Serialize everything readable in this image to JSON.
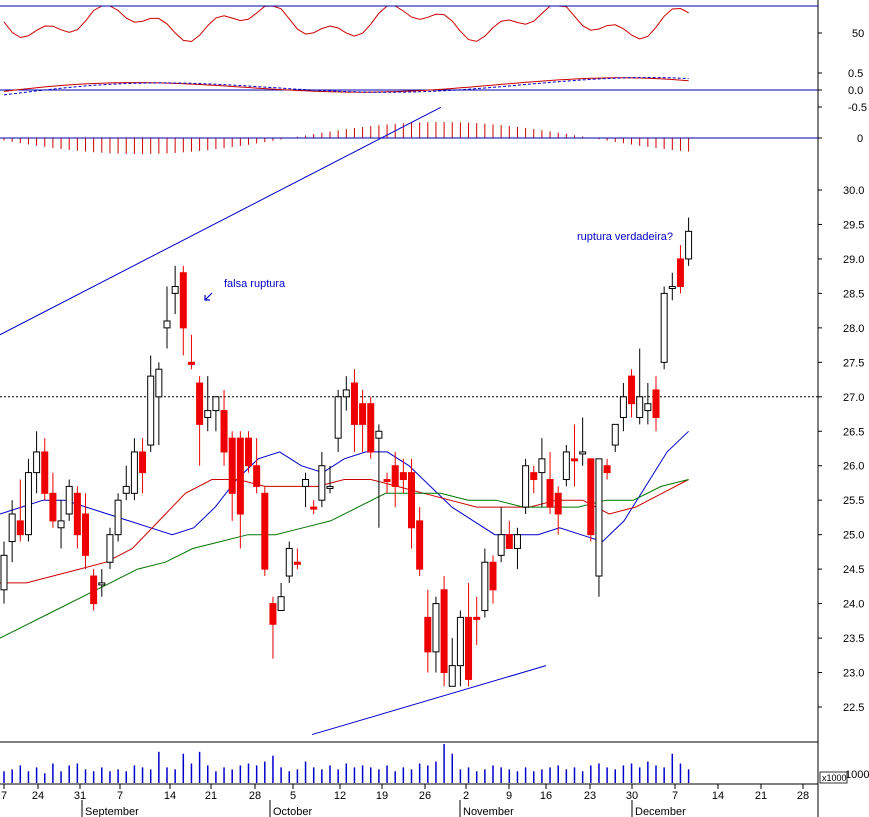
{
  "chart_data": {
    "type": "candlestick",
    "price_axis": {
      "ylim": [
        22.1,
        30.3
      ],
      "ticks": [
        22.5,
        23.0,
        23.5,
        24.0,
        24.5,
        25.0,
        25.5,
        26.0,
        26.5,
        27.0,
        27.5,
        28.0,
        28.5,
        29.0,
        29.5,
        30.0
      ]
    },
    "reference_level": 27.0,
    "x_day_labels": [
      "7",
      "24",
      "31",
      "7",
      "14",
      "21",
      "28",
      "5",
      "12",
      "19",
      "26",
      "2",
      "9",
      "16",
      "23",
      "30",
      "7",
      "14",
      "21",
      "28"
    ],
    "x_month_labels": [
      "September",
      "October",
      "November",
      "December"
    ],
    "annotations": [
      {
        "text": "falsa ruptura"
      },
      {
        "text": "ruptura verdadeira?"
      }
    ],
    "candles": [
      {
        "o": 24.2,
        "h": 24.9,
        "l": 24.0,
        "c": 24.7,
        "dir": "up"
      },
      {
        "o": 24.9,
        "h": 25.5,
        "l": 24.6,
        "c": 25.3,
        "dir": "up"
      },
      {
        "o": 25.2,
        "h": 25.8,
        "l": 24.9,
        "c": 25.0,
        "dir": "down"
      },
      {
        "o": 25.0,
        "h": 26.1,
        "l": 24.9,
        "c": 25.9,
        "dir": "up"
      },
      {
        "o": 25.9,
        "h": 26.5,
        "l": 25.6,
        "c": 26.2,
        "dir": "up"
      },
      {
        "o": 26.2,
        "h": 26.4,
        "l": 25.5,
        "c": 25.6,
        "dir": "down"
      },
      {
        "o": 25.6,
        "h": 25.9,
        "l": 25.1,
        "c": 25.2,
        "dir": "down"
      },
      {
        "o": 25.1,
        "h": 25.5,
        "l": 24.8,
        "c": 25.2,
        "dir": "up"
      },
      {
        "o": 25.3,
        "h": 25.8,
        "l": 25.2,
        "c": 25.7,
        "dir": "up"
      },
      {
        "o": 25.6,
        "h": 25.7,
        "l": 24.8,
        "c": 25.0,
        "dir": "down"
      },
      {
        "o": 25.3,
        "h": 25.6,
        "l": 24.5,
        "c": 24.7,
        "dir": "down"
      },
      {
        "o": 24.4,
        "h": 24.5,
        "l": 23.9,
        "c": 24.0,
        "dir": "down"
      },
      {
        "o": 24.3,
        "h": 24.5,
        "l": 24.1,
        "c": 24.3,
        "dir": "up"
      },
      {
        "o": 24.6,
        "h": 25.1,
        "l": 24.5,
        "c": 25.0,
        "dir": "up"
      },
      {
        "o": 25.0,
        "h": 25.6,
        "l": 24.9,
        "c": 25.5,
        "dir": "up"
      },
      {
        "o": 25.6,
        "h": 26.0,
        "l": 25.5,
        "c": 25.7,
        "dir": "up"
      },
      {
        "o": 25.6,
        "h": 26.4,
        "l": 25.5,
        "c": 26.2,
        "dir": "up"
      },
      {
        "o": 26.2,
        "h": 26.4,
        "l": 25.6,
        "c": 25.9,
        "dir": "down"
      },
      {
        "o": 26.3,
        "h": 27.6,
        "l": 26.2,
        "c": 27.3,
        "dir": "up"
      },
      {
        "o": 27.0,
        "h": 27.5,
        "l": 26.3,
        "c": 27.4,
        "dir": "up"
      },
      {
        "o": 28.0,
        "h": 28.6,
        "l": 27.7,
        "c": 28.1,
        "dir": "up"
      },
      {
        "o": 28.5,
        "h": 28.9,
        "l": 28.2,
        "c": 28.6,
        "dir": "up"
      },
      {
        "o": 28.8,
        "h": 28.9,
        "l": 27.6,
        "c": 28.0,
        "dir": "down"
      },
      {
        "o": 27.5,
        "h": 27.9,
        "l": 27.4,
        "c": 27.5,
        "dir": "down"
      },
      {
        "o": 27.2,
        "h": 27.3,
        "l": 26.0,
        "c": 26.6,
        "dir": "down"
      },
      {
        "o": 26.7,
        "h": 27.3,
        "l": 26.5,
        "c": 26.8,
        "dir": "up"
      },
      {
        "o": 26.8,
        "h": 27.0,
        "l": 26.5,
        "c": 27.0,
        "dir": "up"
      },
      {
        "o": 26.8,
        "h": 27.1,
        "l": 26.0,
        "c": 26.2,
        "dir": "down"
      },
      {
        "o": 26.4,
        "h": 26.5,
        "l": 25.2,
        "c": 25.6,
        "dir": "down"
      },
      {
        "o": 26.4,
        "h": 26.5,
        "l": 24.8,
        "c": 25.3,
        "dir": "down"
      },
      {
        "o": 26.4,
        "h": 26.5,
        "l": 25.9,
        "c": 26.0,
        "dir": "down"
      },
      {
        "o": 26.0,
        "h": 26.4,
        "l": 25.6,
        "c": 25.7,
        "dir": "down"
      },
      {
        "o": 25.6,
        "h": 25.7,
        "l": 24.4,
        "c": 24.5,
        "dir": "down"
      },
      {
        "o": 24.0,
        "h": 24.1,
        "l": 23.2,
        "c": 23.7,
        "dir": "down"
      },
      {
        "o": 23.9,
        "h": 24.3,
        "l": 23.9,
        "c": 24.1,
        "dir": "up"
      },
      {
        "o": 24.4,
        "h": 24.9,
        "l": 24.3,
        "c": 24.8,
        "dir": "up"
      },
      {
        "o": 24.6,
        "h": 24.8,
        "l": 24.5,
        "c": 24.6,
        "dir": "down"
      },
      {
        "o": 25.7,
        "h": 25.9,
        "l": 25.4,
        "c": 25.8,
        "dir": "up"
      },
      {
        "o": 25.4,
        "h": 25.5,
        "l": 25.3,
        "c": 25.4,
        "dir": "down"
      },
      {
        "o": 25.5,
        "h": 26.2,
        "l": 25.4,
        "c": 26.0,
        "dir": "up"
      },
      {
        "o": 25.7,
        "h": 26.0,
        "l": 25.6,
        "c": 25.7,
        "dir": "up"
      },
      {
        "o": 26.4,
        "h": 27.1,
        "l": 26.2,
        "c": 27.0,
        "dir": "up"
      },
      {
        "o": 27.0,
        "h": 27.3,
        "l": 26.8,
        "c": 27.1,
        "dir": "up"
      },
      {
        "o": 27.2,
        "h": 27.4,
        "l": 26.2,
        "c": 26.6,
        "dir": "down"
      },
      {
        "o": 26.9,
        "h": 27.1,
        "l": 26.2,
        "c": 26.6,
        "dir": "down"
      },
      {
        "o": 26.9,
        "h": 27.0,
        "l": 26.1,
        "c": 26.2,
        "dir": "down"
      },
      {
        "o": 26.4,
        "h": 26.6,
        "l": 25.1,
        "c": 26.5,
        "dir": "up"
      },
      {
        "o": 25.8,
        "h": 25.9,
        "l": 25.6,
        "c": 25.8,
        "dir": "down"
      },
      {
        "o": 26.0,
        "h": 26.2,
        "l": 25.4,
        "c": 25.7,
        "dir": "down"
      },
      {
        "o": 25.9,
        "h": 26.1,
        "l": 25.6,
        "c": 25.8,
        "dir": "down"
      },
      {
        "o": 25.9,
        "h": 26.1,
        "l": 24.8,
        "c": 25.1,
        "dir": "down"
      },
      {
        "o": 25.2,
        "h": 25.4,
        "l": 24.4,
        "c": 24.5,
        "dir": "down"
      },
      {
        "o": 23.8,
        "h": 24.2,
        "l": 23.0,
        "c": 23.3,
        "dir": "down"
      },
      {
        "o": 23.3,
        "h": 24.1,
        "l": 23.0,
        "c": 24.0,
        "dir": "up"
      },
      {
        "o": 24.2,
        "h": 24.4,
        "l": 22.8,
        "c": 23.0,
        "dir": "down"
      },
      {
        "o": 22.8,
        "h": 23.5,
        "l": 22.8,
        "c": 23.1,
        "dir": "up"
      },
      {
        "o": 23.1,
        "h": 23.9,
        "l": 22.8,
        "c": 23.8,
        "dir": "up"
      },
      {
        "o": 23.8,
        "h": 24.3,
        "l": 22.8,
        "c": 22.9,
        "dir": "down"
      },
      {
        "o": 23.8,
        "h": 24.1,
        "l": 23.4,
        "c": 23.8,
        "dir": "down"
      },
      {
        "o": 23.9,
        "h": 24.8,
        "l": 23.8,
        "c": 24.6,
        "dir": "up"
      },
      {
        "o": 24.6,
        "h": 24.7,
        "l": 24.0,
        "c": 24.2,
        "dir": "down"
      },
      {
        "o": 24.7,
        "h": 25.4,
        "l": 24.6,
        "c": 25.0,
        "dir": "up"
      },
      {
        "o": 25.0,
        "h": 25.2,
        "l": 24.8,
        "c": 24.8,
        "dir": "down"
      },
      {
        "o": 24.8,
        "h": 25.1,
        "l": 24.5,
        "c": 25.0,
        "dir": "up"
      },
      {
        "o": 25.4,
        "h": 26.1,
        "l": 25.3,
        "c": 26.0,
        "dir": "up"
      },
      {
        "o": 25.9,
        "h": 26.0,
        "l": 25.6,
        "c": 25.8,
        "dir": "down"
      },
      {
        "o": 25.9,
        "h": 26.4,
        "l": 25.4,
        "c": 26.1,
        "dir": "up"
      },
      {
        "o": 25.8,
        "h": 26.2,
        "l": 25.3,
        "c": 25.4,
        "dir": "down"
      },
      {
        "o": 25.6,
        "h": 25.7,
        "l": 25.0,
        "c": 25.3,
        "dir": "down"
      },
      {
        "o": 25.8,
        "h": 26.3,
        "l": 25.7,
        "c": 26.2,
        "dir": "up"
      },
      {
        "o": 26.1,
        "h": 26.6,
        "l": 25.7,
        "c": 26.1,
        "dir": "down"
      },
      {
        "o": 26.2,
        "h": 26.7,
        "l": 26.0,
        "c": 26.2,
        "dir": "up"
      },
      {
        "o": 26.1,
        "h": 26.1,
        "l": 24.9,
        "c": 25.0,
        "dir": "down"
      },
      {
        "o": 24.4,
        "h": 26.1,
        "l": 24.1,
        "c": 26.1,
        "dir": "up"
      },
      {
        "o": 26.0,
        "h": 26.1,
        "l": 25.8,
        "c": 25.9,
        "dir": "down"
      },
      {
        "o": 26.3,
        "h": 26.6,
        "l": 26.2,
        "c": 26.6,
        "dir": "up"
      },
      {
        "o": 26.7,
        "h": 27.2,
        "l": 26.5,
        "c": 27.0,
        "dir": "up"
      },
      {
        "o": 27.3,
        "h": 27.4,
        "l": 26.7,
        "c": 26.9,
        "dir": "down"
      },
      {
        "o": 26.7,
        "h": 27.7,
        "l": 26.6,
        "c": 27.0,
        "dir": "up"
      },
      {
        "o": 26.8,
        "h": 27.2,
        "l": 26.6,
        "c": 26.9,
        "dir": "up"
      },
      {
        "o": 27.1,
        "h": 27.3,
        "l": 26.5,
        "c": 26.7,
        "dir": "down"
      },
      {
        "o": 27.5,
        "h": 28.6,
        "l": 27.4,
        "c": 28.5,
        "dir": "up"
      },
      {
        "o": 28.6,
        "h": 28.8,
        "l": 28.4,
        "c": 28.6,
        "dir": "up"
      },
      {
        "o": 29.0,
        "h": 29.2,
        "l": 28.5,
        "c": 28.6,
        "dir": "down"
      },
      {
        "o": 29.0,
        "h": 29.6,
        "l": 28.9,
        "c": 29.4,
        "dir": "up"
      }
    ],
    "moving_averages": [
      {
        "color": "#0000cc",
        "values": [
          25.3,
          25.4,
          25.5,
          25.5,
          25.4,
          25.3,
          25.2,
          25.1,
          25.0,
          25.1,
          25.4,
          25.8,
          26.1,
          26.2,
          26.0,
          25.9,
          26.1,
          26.2,
          26.2,
          26.0,
          25.7,
          25.4,
          25.2,
          25.0,
          25.0,
          25.0,
          25.1,
          25.0,
          24.9,
          25.2,
          25.7,
          26.2,
          26.5
        ]
      },
      {
        "color": "#cc0000",
        "values": [
          24.3,
          24.3,
          24.4,
          24.5,
          24.6,
          24.8,
          25.2,
          25.6,
          25.8,
          25.8,
          25.7,
          25.7,
          25.7,
          25.8,
          25.8,
          25.7,
          25.6,
          25.5,
          25.4,
          25.4,
          25.4,
          25.5,
          25.5,
          25.3,
          25.4,
          25.6,
          25.8
        ]
      },
      {
        "color": "#007700",
        "values": [
          23.5,
          23.7,
          23.9,
          24.1,
          24.3,
          24.5,
          24.6,
          24.8,
          24.9,
          25.0,
          25.0,
          25.1,
          25.2,
          25.4,
          25.6,
          25.6,
          25.6,
          25.5,
          25.5,
          25.4,
          25.4,
          25.4,
          25.5,
          25.5,
          25.7,
          25.8
        ]
      }
    ],
    "oscillator_axis": {
      "ticks": [
        "50"
      ]
    },
    "macd_axis": {
      "ticks": [
        "0.5",
        "0.0",
        "-0.5"
      ]
    },
    "histogram_axis": {
      "ticks": [
        "0"
      ]
    },
    "volume_axis": {
      "ticks": [
        "1000"
      ],
      "unit": "x1000"
    },
    "volume": [
      0.3,
      0.35,
      0.45,
      0.3,
      0.4,
      0.25,
      0.5,
      0.3,
      0.45,
      0.5,
      0.35,
      0.3,
      0.4,
      0.3,
      0.35,
      0.3,
      0.45,
      0.4,
      0.35,
      0.8,
      0.4,
      0.35,
      0.75,
      0.5,
      0.8,
      0.45,
      0.3,
      0.4,
      0.35,
      0.45,
      0.5,
      0.45,
      0.55,
      0.7,
      0.4,
      0.3,
      0.35,
      0.55,
      0.4,
      0.35,
      0.45,
      0.35,
      0.5,
      0.4,
      0.45,
      0.4,
      0.35,
      0.45,
      0.3,
      0.4,
      0.35,
      0.5,
      0.45,
      0.55,
      1.0,
      0.75,
      0.35,
      0.4,
      0.3,
      0.35,
      0.45,
      0.4,
      0.35,
      0.3,
      0.4,
      0.3,
      0.35,
      0.4,
      0.45,
      0.35,
      0.4,
      0.3,
      0.45,
      0.5,
      0.4,
      0.35,
      0.45,
      0.5,
      0.4,
      0.55,
      0.45,
      0.4,
      0.75,
      0.5,
      0.35,
      0.4
    ]
  }
}
